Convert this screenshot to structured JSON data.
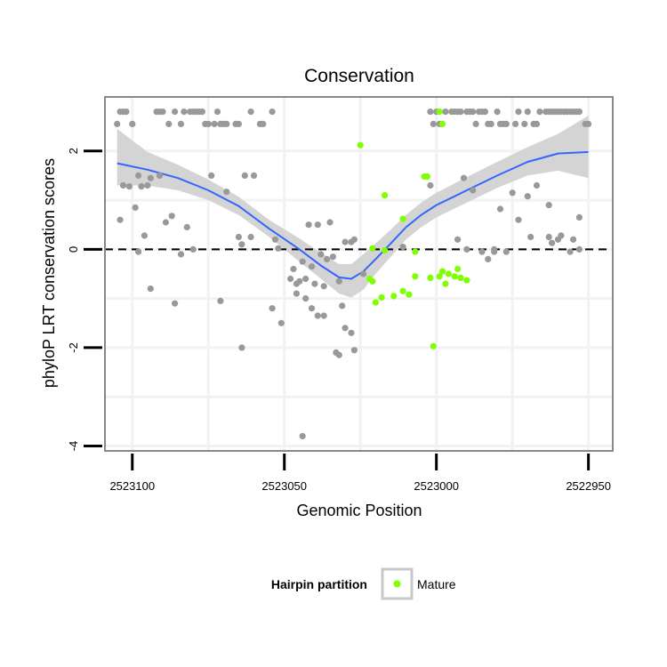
{
  "chart_data": {
    "type": "scatter",
    "title": "Conservation",
    "xlabel": "Genomic Position",
    "ylabel": "phyloP LRT conservation scores",
    "xlim": [
      2523109,
      2522942
    ],
    "x_reversed": true,
    "ylim": [
      -4.1,
      3.1
    ],
    "x_ticks": [
      2523100,
      2523050,
      2523000,
      2522950
    ],
    "x_tick_labels": [
      "2523100",
      "2523050",
      "2523000",
      "2522950"
    ],
    "y_ticks": [
      -4,
      -2,
      0,
      2
    ],
    "y_tick_labels": [
      "-4",
      "-2",
      "0",
      "2"
    ],
    "grid": true,
    "reference_line": {
      "y": 0,
      "style": "dashed"
    },
    "legend": {
      "title": "Hairpin partition",
      "placement": "bottom",
      "entries": [
        {
          "label": "Mature",
          "color": "#7fff00"
        }
      ]
    },
    "colors": {
      "other": "#999999",
      "mature": "#7fff00",
      "smooth": "#3366ff",
      "band": "#d4d4d4",
      "panel_border": "#888888"
    },
    "series": [
      {
        "color": "#999999",
        "points": [
          [
            2523105,
            2.55
          ],
          [
            2523104,
            2.8
          ],
          [
            2523103,
            2.8
          ],
          [
            2523102,
            2.8
          ],
          [
            2523100,
            2.55
          ],
          [
            2523092,
            2.8
          ],
          [
            2523091,
            2.8
          ],
          [
            2523090,
            2.8
          ],
          [
            2523088,
            2.55
          ],
          [
            2523086,
            2.8
          ],
          [
            2523084,
            2.55
          ],
          [
            2523083,
            2.8
          ],
          [
            2523081,
            2.8
          ],
          [
            2523080,
            2.8
          ],
          [
            2523079,
            2.8
          ],
          [
            2523078,
            2.8
          ],
          [
            2523077,
            2.8
          ],
          [
            2523076,
            2.55
          ],
          [
            2523075,
            2.55
          ],
          [
            2523073,
            2.55
          ],
          [
            2523072,
            2.8
          ],
          [
            2523071,
            2.55
          ],
          [
            2523070,
            2.55
          ],
          [
            2523069,
            2.55
          ],
          [
            2523066,
            2.55
          ],
          [
            2523065,
            2.55
          ],
          [
            2523061,
            2.8
          ],
          [
            2523058,
            2.55
          ],
          [
            2523057,
            2.55
          ],
          [
            2523054,
            2.8
          ],
          [
            2523002,
            2.8
          ],
          [
            2523001,
            2.55
          ],
          [
            2523000,
            2.8
          ],
          [
            2522999,
            2.55
          ],
          [
            2522997,
            2.8
          ],
          [
            2522995,
            2.8
          ],
          [
            2522994,
            2.8
          ],
          [
            2522993,
            2.8
          ],
          [
            2522992,
            2.8
          ],
          [
            2522990,
            2.8
          ],
          [
            2522989,
            2.8
          ],
          [
            2522988,
            2.8
          ],
          [
            2522987,
            2.55
          ],
          [
            2522986,
            2.8
          ],
          [
            2522985,
            2.8
          ],
          [
            2522984,
            2.8
          ],
          [
            2522983,
            2.55
          ],
          [
            2522982,
            2.55
          ],
          [
            2522980,
            2.8
          ],
          [
            2522979,
            2.55
          ],
          [
            2522978,
            2.55
          ],
          [
            2522977,
            2.55
          ],
          [
            2522974,
            2.55
          ],
          [
            2522973,
            2.8
          ],
          [
            2522971,
            2.55
          ],
          [
            2522970,
            2.8
          ],
          [
            2522968,
            2.55
          ],
          [
            2522967,
            2.55
          ],
          [
            2522966,
            2.8
          ],
          [
            2522964,
            2.8
          ],
          [
            2522963,
            2.8
          ],
          [
            2522962,
            2.8
          ],
          [
            2522961,
            2.8
          ],
          [
            2522960,
            2.8
          ],
          [
            2522959,
            2.8
          ],
          [
            2522958,
            2.8
          ],
          [
            2522957,
            2.8
          ],
          [
            2522956,
            2.8
          ],
          [
            2522955,
            2.8
          ],
          [
            2522954,
            2.8
          ],
          [
            2522953,
            2.8
          ],
          [
            2522951,
            2.55
          ],
          [
            2522950,
            2.55
          ],
          [
            2523103,
            1.3
          ],
          [
            2523101,
            1.28
          ],
          [
            2523099,
            0.85
          ],
          [
            2523098,
            1.5
          ],
          [
            2523097,
            1.28
          ],
          [
            2523095,
            1.3
          ],
          [
            2523094,
            1.45
          ],
          [
            2523091,
            1.5
          ],
          [
            2523089,
            0.55
          ],
          [
            2523074,
            1.5
          ],
          [
            2523069,
            1.17
          ],
          [
            2523063,
            1.5
          ],
          [
            2523060,
            1.5
          ],
          [
            2523061,
            0.25
          ],
          [
            2523065,
            0.25
          ],
          [
            2523042,
            0.5
          ],
          [
            2523039,
            0.5
          ],
          [
            2523035,
            0.55
          ],
          [
            2523030,
            0.15
          ],
          [
            2523002,
            1.3
          ],
          [
            2522991,
            1.45
          ],
          [
            2522988,
            1.2
          ],
          [
            2522979,
            0.82
          ],
          [
            2522975,
            1.15
          ],
          [
            2522970,
            1.08
          ],
          [
            2522967,
            1.3
          ],
          [
            2522963,
            0.9
          ],
          [
            2522953,
            0.65
          ],
          [
            2522959,
            0.28
          ],
          [
            2522962,
            0.13
          ],
          [
            2523104,
            0.6
          ],
          [
            2523096,
            0.28
          ],
          [
            2523087,
            0.68
          ],
          [
            2523082,
            0.45
          ],
          [
            2523064,
            0.1
          ],
          [
            2523053,
            0.2
          ],
          [
            2523052,
            0.02
          ],
          [
            2523047,
            -0.4
          ],
          [
            2523044,
            -0.25
          ],
          [
            2523041,
            -0.35
          ],
          [
            2523038,
            -0.1
          ],
          [
            2523036,
            -0.2
          ],
          [
            2523034,
            -0.15
          ],
          [
            2523028,
            0.15
          ],
          [
            2523027,
            0.2
          ],
          [
            2523011,
            0.05
          ],
          [
            2522993,
            0.2
          ],
          [
            2522990,
            0.0
          ],
          [
            2522985,
            -0.05
          ],
          [
            2522983,
            -0.2
          ],
          [
            2522981,
            -0.05
          ],
          [
            2522977,
            -0.05
          ],
          [
            2522973,
            0.6
          ],
          [
            2522969,
            0.25
          ],
          [
            2522963,
            0.25
          ],
          [
            2522960,
            0.2
          ],
          [
            2522956,
            -0.05
          ],
          [
            2522953,
            0.0
          ],
          [
            2522981,
            0.0
          ],
          [
            2522955,
            0.2
          ],
          [
            2523098,
            -0.05
          ],
          [
            2523094,
            -0.8
          ],
          [
            2523086,
            -1.1
          ],
          [
            2523084,
            -0.1
          ],
          [
            2523080,
            0.0
          ],
          [
            2523071,
            -1.05
          ],
          [
            2523048,
            -0.6
          ],
          [
            2523046,
            -0.7
          ],
          [
            2523045,
            -0.65
          ],
          [
            2523043,
            -0.6
          ],
          [
            2523040,
            -0.7
          ],
          [
            2523037,
            -0.75
          ],
          [
            2523037,
            -1.35
          ],
          [
            2523032,
            -0.65
          ],
          [
            2523030,
            -1.6
          ],
          [
            2523054,
            -1.2
          ],
          [
            2523051,
            -1.5
          ],
          [
            2523046,
            -0.9
          ],
          [
            2523043,
            -1.0
          ],
          [
            2523041,
            -1.2
          ],
          [
            2523039,
            -1.35
          ],
          [
            2523031,
            -1.15
          ],
          [
            2523028,
            -1.7
          ],
          [
            2523024,
            -0.5
          ],
          [
            2523064,
            -2.0
          ],
          [
            2523033,
            -2.1
          ],
          [
            2523032,
            -2.15
          ],
          [
            2523027,
            -2.05
          ],
          [
            2523044,
            -3.8
          ]
        ]
      },
      {
        "name": "Mature",
        "color": "#7fff00",
        "points": [
          [
            2523025,
            2.12
          ],
          [
            2522999,
            2.8
          ],
          [
            2522998,
            2.55
          ],
          [
            2523017,
            1.1
          ],
          [
            2523011,
            0.62
          ],
          [
            2523004,
            1.48
          ],
          [
            2523003,
            1.48
          ],
          [
            2523021,
            0.02
          ],
          [
            2523017,
            -0.02
          ],
          [
            2523007,
            -0.05
          ],
          [
            2523022,
            -0.6
          ],
          [
            2523021,
            -0.65
          ],
          [
            2523020,
            -1.08
          ],
          [
            2523018,
            -0.98
          ],
          [
            2523014,
            -0.95
          ],
          [
            2523011,
            -0.85
          ],
          [
            2523009,
            -0.92
          ],
          [
            2523007,
            -0.55
          ],
          [
            2523002,
            -0.58
          ],
          [
            2522999,
            -0.55
          ],
          [
            2522998,
            -0.45
          ],
          [
            2522996,
            -0.5
          ],
          [
            2522994,
            -0.55
          ],
          [
            2522992,
            -0.58
          ],
          [
            2522990,
            -0.63
          ],
          [
            2522997,
            -0.7
          ],
          [
            2522993,
            -0.4
          ],
          [
            2523001,
            -1.97
          ]
        ]
      }
    ],
    "smooth": {
      "x": [
        2523105,
        2523095,
        2523085,
        2523075,
        2523065,
        2523055,
        2523045,
        2523038,
        2523032,
        2523028,
        2523024,
        2523020,
        2523015,
        2523010,
        2523005,
        2523000,
        2522990,
        2522980,
        2522970,
        2522960,
        2522950
      ],
      "y": [
        1.75,
        1.62,
        1.45,
        1.2,
        0.88,
        0.42,
        0.0,
        -0.33,
        -0.57,
        -0.6,
        -0.45,
        -0.2,
        0.12,
        0.45,
        0.7,
        0.9,
        1.2,
        1.5,
        1.78,
        1.95,
        1.98
      ],
      "band_lower": [
        1.3,
        1.3,
        1.2,
        1.0,
        0.7,
        0.25,
        -0.25,
        -0.6,
        -0.9,
        -0.98,
        -0.82,
        -0.5,
        -0.15,
        0.2,
        0.45,
        0.65,
        0.95,
        1.25,
        1.5,
        1.6,
        1.45
      ],
      "band_upper": [
        2.45,
        1.98,
        1.72,
        1.42,
        1.07,
        0.6,
        0.22,
        -0.07,
        -0.3,
        -0.3,
        -0.1,
        0.12,
        0.4,
        0.7,
        0.95,
        1.15,
        1.47,
        1.78,
        2.08,
        2.35,
        2.72
      ]
    }
  }
}
